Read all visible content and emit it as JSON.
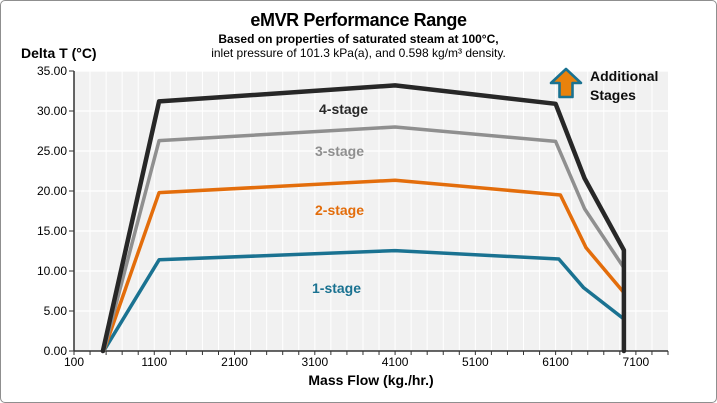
{
  "header": {
    "title": "eMVR Performance Range",
    "subtitle1": "Based on properties of saturated steam at 100°C,",
    "subtitle2": "inlet pressure of 101.3 kPa(a), and 0.598 kg/m³ density."
  },
  "annotation": {
    "label": "Additional Stages",
    "arrow_fill": "#E8820C",
    "arrow_stroke": "#1A7291"
  },
  "chart_data": {
    "type": "line",
    "title": "eMVR Performance Range",
    "xlabel": "Mass Flow  (kg./hr.)",
    "ylabel": "Delta T  (°C)",
    "xlim": [
      100,
      7500
    ],
    "ylim": [
      0,
      35
    ],
    "x_ticks": [
      100,
      1100,
      2100,
      3100,
      4100,
      5100,
      6100,
      7100
    ],
    "x_tick_labels": [
      "100",
      "1100",
      "2100",
      "3100",
      "4100",
      "5100",
      "6100",
      "7100"
    ],
    "x_minor_step": 200,
    "y_ticks": [
      0,
      5,
      10,
      15,
      20,
      25,
      30,
      35
    ],
    "y_tick_labels": [
      "0.00",
      "5.00",
      "10.00",
      "15.00",
      "20.00",
      "25.00",
      "30.00",
      "35.00"
    ],
    "grid": {
      "vertical_every": 200,
      "horizontal_every": 5,
      "color": "#ffffff",
      "background": "#f1f1f1"
    },
    "axis_color": "#333333",
    "legend_position": "labels-on-lines",
    "series": [
      {
        "name": "1-stage",
        "color": "#1A7291",
        "width": 3.5,
        "points": [
          [
            470,
            0
          ],
          [
            1160,
            11.4
          ],
          [
            4100,
            12.55
          ],
          [
            6140,
            11.5
          ],
          [
            6450,
            7.9
          ],
          [
            6950,
            4.0
          ]
        ]
      },
      {
        "name": "2-stage",
        "color": "#E36D0B",
        "width": 3.5,
        "points": [
          [
            470,
            0
          ],
          [
            1160,
            19.8
          ],
          [
            4100,
            21.35
          ],
          [
            6160,
            19.5
          ],
          [
            6480,
            12.9
          ],
          [
            6950,
            7.3
          ]
        ]
      },
      {
        "name": "3-stage",
        "color": "#8F8F8F",
        "width": 3.5,
        "points": [
          [
            470,
            0
          ],
          [
            1160,
            26.3
          ],
          [
            4100,
            28.0
          ],
          [
            6100,
            26.2
          ],
          [
            6460,
            17.8
          ],
          [
            6950,
            10.4
          ]
        ]
      },
      {
        "name": "4-stage",
        "color": "#272727",
        "width": 4.5,
        "points": [
          [
            460,
            0
          ],
          [
            1160,
            31.2
          ],
          [
            4100,
            33.2
          ],
          [
            6100,
            30.9
          ],
          [
            6460,
            21.6
          ],
          [
            6950,
            12.6
          ],
          [
            6950,
            0
          ]
        ]
      }
    ]
  }
}
